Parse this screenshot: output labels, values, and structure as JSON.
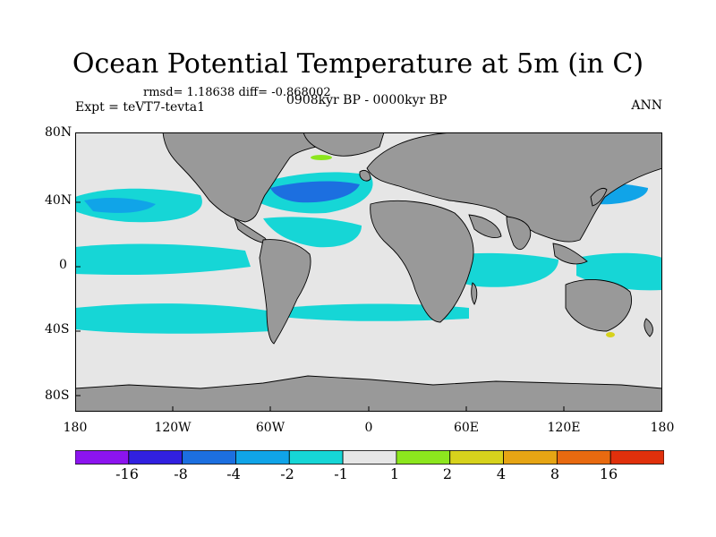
{
  "header": {
    "title": "Ocean Potential Temperature at 5m (in C)",
    "stats": "rmsd= 1.18638 diff= -0.868002",
    "experiment": "Expt = teVT7-tevta1",
    "period": "0908kyr BP - 0000kyr BP",
    "season": "ANN"
  },
  "map": {
    "lat_ticks": [
      "80N",
      "40N",
      "0",
      "40S",
      "80S"
    ],
    "lon_ticks": [
      "180",
      "120W",
      "60W",
      "0",
      "60E",
      "120E",
      "180"
    ]
  },
  "colorbar": {
    "labels": [
      "-16",
      "-8",
      "-4",
      "-2",
      "-1",
      "1",
      "2",
      "4",
      "8",
      "16"
    ],
    "colors": [
      "#8c14ef",
      "#3120e0",
      "#1c6fe0",
      "#10a4e8",
      "#16d6d6",
      "#e6e6e6",
      "#8ce61e",
      "#d7d21c",
      "#e6a514",
      "#e86a10",
      "#e0300c"
    ]
  },
  "colors": {
    "land": "#999999",
    "ocean_neutral": "#e6e6e6",
    "cyan": "#16d6d6",
    "light_blue": "#10a4e8",
    "blue": "#1c6fe0"
  }
}
